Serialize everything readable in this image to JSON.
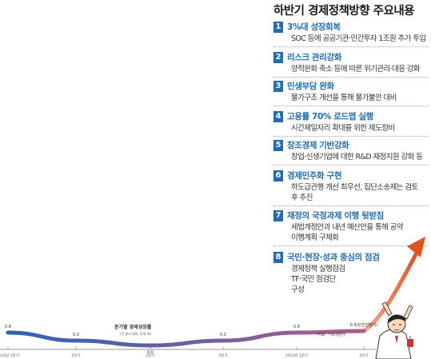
{
  "title": "하반기 경제정책방향 주요내용",
  "items": [
    {
      "num": "1",
      "title": "3%대 성장회복",
      "desc": [
        "SOC 등에 공공기관·민간투자 1조원 추가 투입"
      ]
    },
    {
      "num": "2",
      "title": "리스크 관리강화",
      "desc": [
        "양적완화 축소 등에 따른 위기관리·대응 강화"
      ]
    },
    {
      "num": "3",
      "title": "민생부담 완화",
      "desc": [
        "물가구조 개선을 통해 물가불안 대비"
      ]
    },
    {
      "num": "4",
      "title": "고용률 70% 로드맵 실행",
      "desc": [
        "시간제일자리 확대를 위한 제도정비"
      ]
    },
    {
      "num": "5",
      "title": "창조경제 기반강화",
      "desc": [
        "창업·신생기업에 대한 R&D 재정지원 강화 등"
      ]
    },
    {
      "num": "6",
      "title": "경제민주화 구현",
      "desc": [
        "하도급관행 개선 최우선, 집단소송제는 검토",
        "후 추진"
      ]
    },
    {
      "num": "7",
      "title": "재정의 국정과제 이행 뒷받침",
      "desc": [
        "세법개정안과 내년 예산안을 통해 공약",
        "이행계획 구체화"
      ]
    },
    {
      "num": "8",
      "title": "국민·현장·성과 중심의 점검",
      "desc": [
        "경제정책 실행점검",
        "TF·국민 점검단",
        "구성"
      ]
    }
  ],
  "chart_data": {
    "type": "line",
    "title": "분기별 경제성장률",
    "subtitle": "(전 분기 대비, 단위:%)",
    "categories": [
      "2012년 1분기",
      "2분기",
      "3분기",
      "4분기",
      "2013년 1분기",
      "2분기"
    ],
    "values": [
      0.8,
      0.3,
      0.0,
      0.3,
      0.8,
      0.9
    ],
    "value_labels": [
      "0.8",
      "0.3",
      "0.0",
      "0.3",
      "0.8",
      "0.9(한은전망치)"
    ],
    "source": "자료: 기획재정부",
    "ylim": [
      0,
      1
    ]
  },
  "colors": {
    "accent": "#1f6cb5",
    "arrow": "#e8713c",
    "line_start": "#2c63b8",
    "line_end": "#c05a80"
  }
}
